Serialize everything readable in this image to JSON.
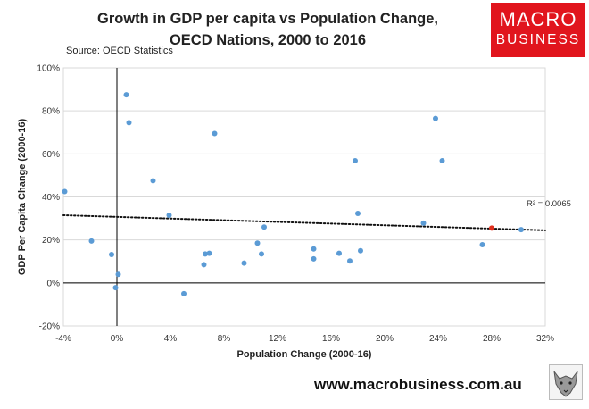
{
  "header": {
    "title_line1": "Growth in GDP per capita vs Population Change,",
    "title_line2": "OECD Nations, 2000 to 2016",
    "source": "Source: OECD Statistics"
  },
  "logo": {
    "line1": "MACRO",
    "line2": "BUSINESS",
    "color": "#e1151d"
  },
  "footer": {
    "url": "www.macrobusiness.com.au"
  },
  "chart_data": {
    "type": "scatter",
    "xlabel": "Population Change (2000-16)",
    "ylabel": "GDP Per Capita Change (2000-16)",
    "xlim": [
      -4,
      32
    ],
    "ylim": [
      -20,
      100
    ],
    "x_ticks": [
      "-4%",
      "0%",
      "4%",
      "8%",
      "12%",
      "16%",
      "20%",
      "24%",
      "28%",
      "32%"
    ],
    "x_tick_values": [
      -4,
      0,
      4,
      8,
      12,
      16,
      20,
      24,
      28,
      32
    ],
    "y_ticks": [
      "-20%",
      "0%",
      "20%",
      "40%",
      "60%",
      "80%",
      "100%"
    ],
    "y_tick_values": [
      -20,
      0,
      20,
      40,
      60,
      80,
      100
    ],
    "grid": "horizontal",
    "point_color": "#5b9bd5",
    "highlight_color": "#e0301e",
    "points": [
      {
        "x": -3.9,
        "y": 42.5
      },
      {
        "x": -1.9,
        "y": 19.5
      },
      {
        "x": -0.4,
        "y": 13.2
      },
      {
        "x": 0.1,
        "y": 4.0
      },
      {
        "x": -0.1,
        "y": -2.2
      },
      {
        "x": 0.7,
        "y": 87.5
      },
      {
        "x": 0.9,
        "y": 74.5
      },
      {
        "x": 2.7,
        "y": 47.5
      },
      {
        "x": 3.9,
        "y": 31.5
      },
      {
        "x": 5.0,
        "y": -5.0
      },
      {
        "x": 6.5,
        "y": 8.5
      },
      {
        "x": 6.6,
        "y": 13.5
      },
      {
        "x": 6.9,
        "y": 13.8
      },
      {
        "x": 7.3,
        "y": 69.5
      },
      {
        "x": 9.5,
        "y": 9.2
      },
      {
        "x": 10.5,
        "y": 18.5
      },
      {
        "x": 10.8,
        "y": 13.5
      },
      {
        "x": 11.0,
        "y": 26.0
      },
      {
        "x": 14.7,
        "y": 11.2
      },
      {
        "x": 14.7,
        "y": 15.8
      },
      {
        "x": 16.6,
        "y": 13.8
      },
      {
        "x": 17.4,
        "y": 10.2
      },
      {
        "x": 17.8,
        "y": 56.8
      },
      {
        "x": 18.0,
        "y": 32.3
      },
      {
        "x": 18.2,
        "y": 15.0
      },
      {
        "x": 22.9,
        "y": 27.8
      },
      {
        "x": 23.8,
        "y": 76.5
      },
      {
        "x": 24.3,
        "y": 56.8
      },
      {
        "x": 27.3,
        "y": 17.8
      },
      {
        "x": 30.2,
        "y": 24.8
      },
      {
        "x": 28.0,
        "y": 25.5,
        "highlight": true
      }
    ],
    "trendline": {
      "x": [
        -4,
        32
      ],
      "y": [
        31.5,
        24.5
      ],
      "style": "dotted"
    },
    "r_squared": "R² = 0.0065"
  }
}
